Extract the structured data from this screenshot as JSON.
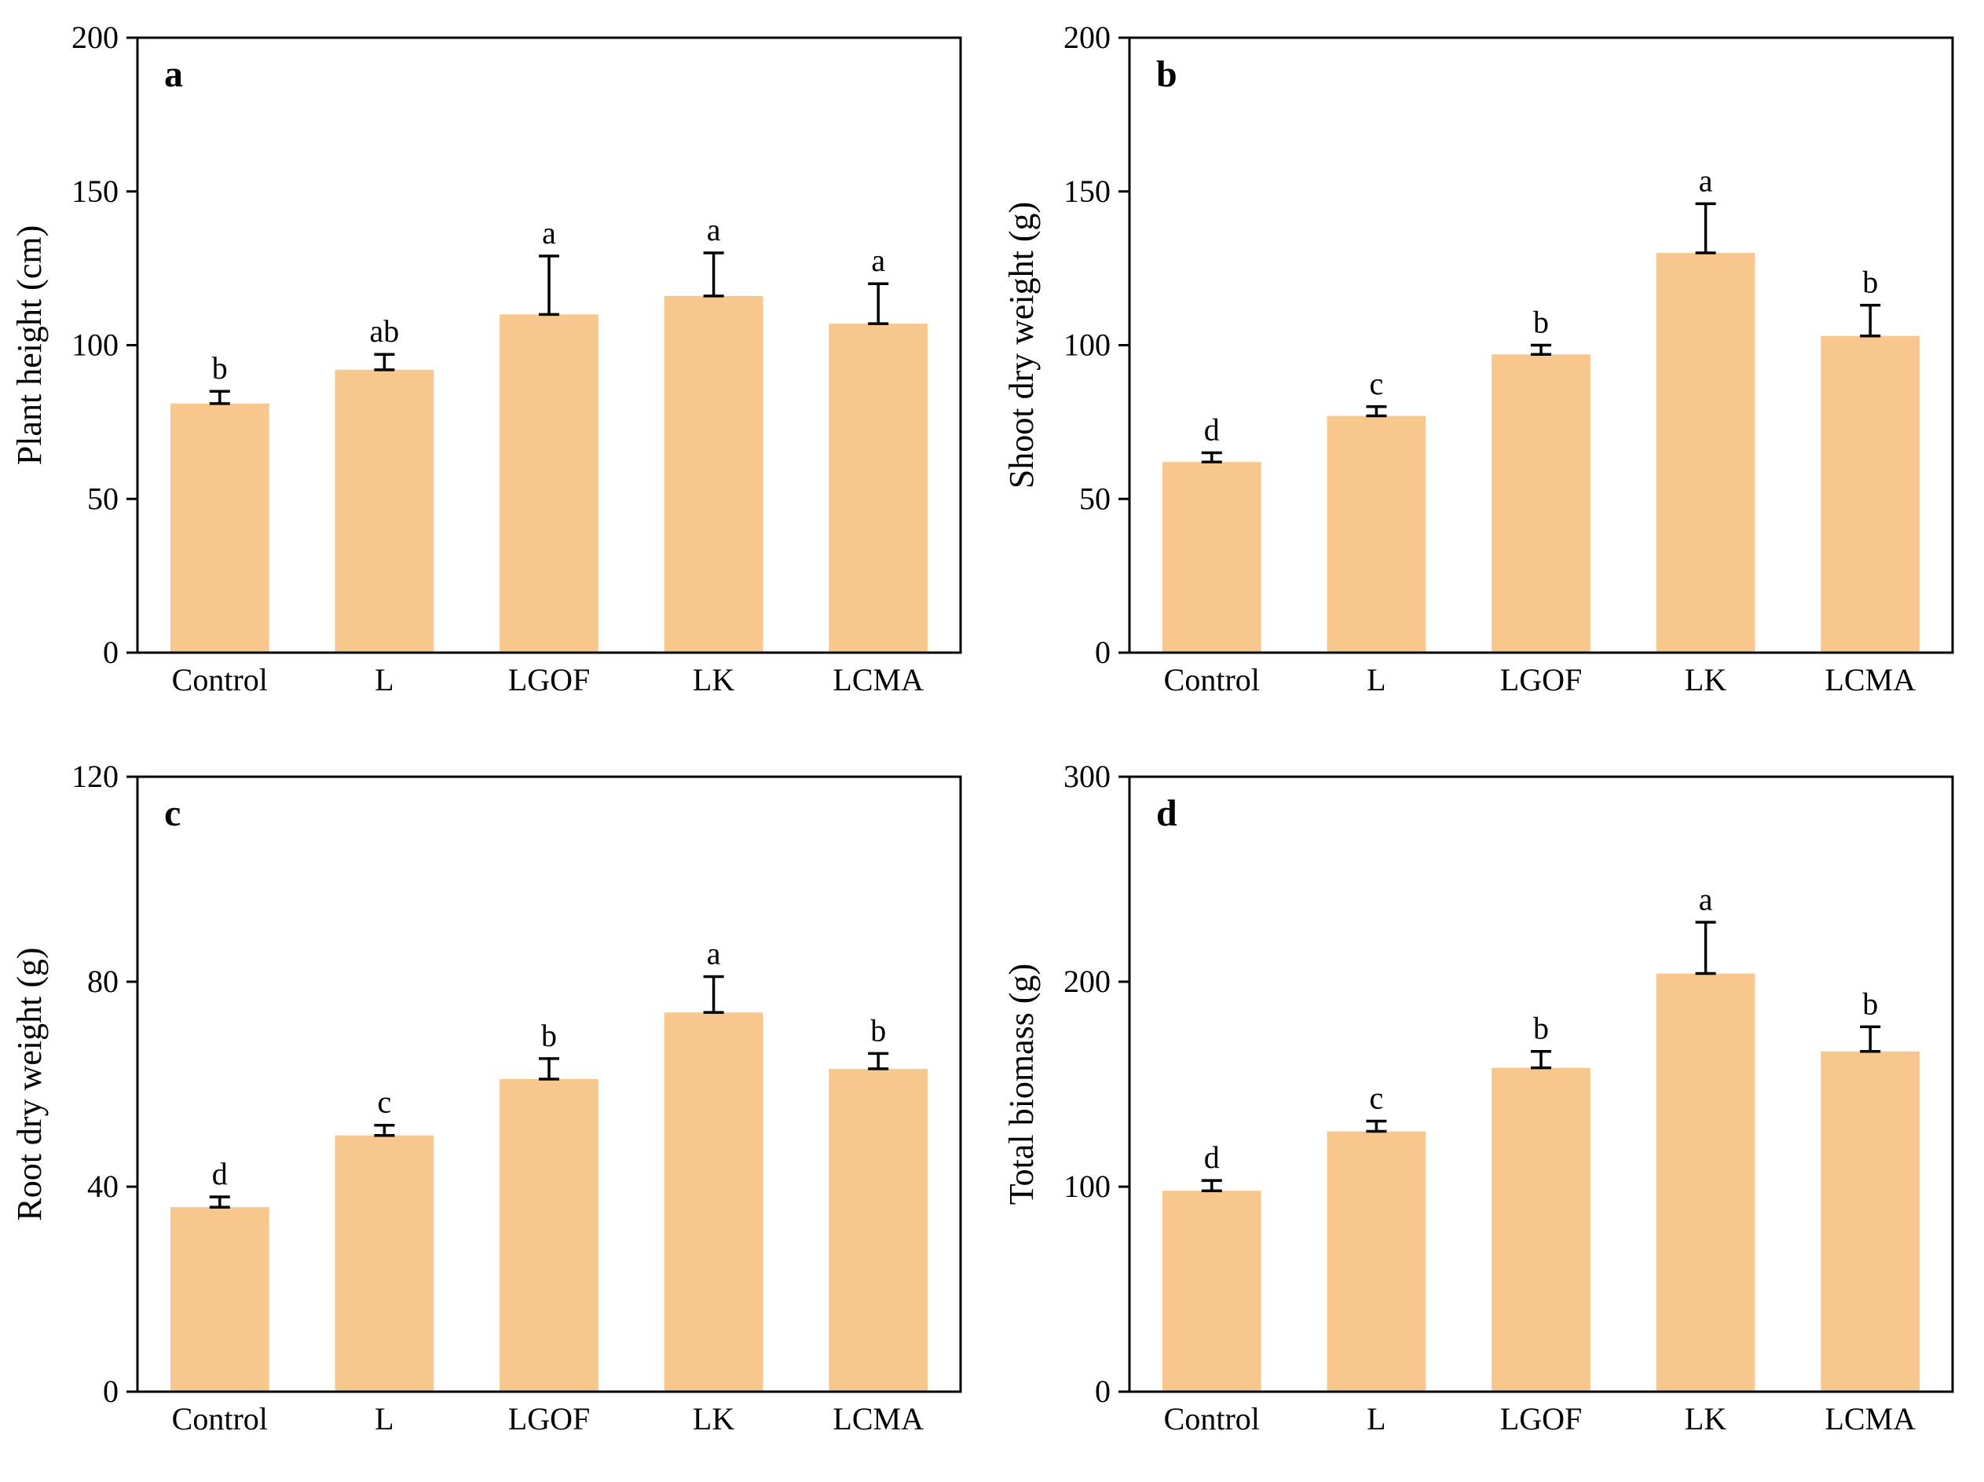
{
  "figure": {
    "background": "#ffffff",
    "bar_color": "#F7C78E",
    "axis_color": "#000000",
    "error_bar_color": "#000000"
  },
  "chart_data": [
    {
      "type": "bar",
      "panel_label": "a",
      "title": "",
      "xlabel": "",
      "ylabel": "Plant height (cm)",
      "categories": [
        "Control",
        "L",
        "LGOF",
        "LK",
        "LCMA"
      ],
      "values": [
        81,
        92,
        110,
        116,
        107
      ],
      "errors": [
        4,
        5,
        19,
        14,
        13
      ],
      "sig_letters": [
        "b",
        "ab",
        "a",
        "a",
        "a"
      ],
      "ylim": [
        0,
        200
      ],
      "yticks": [
        0,
        50,
        100,
        150,
        200
      ],
      "grid": false,
      "legend": "none"
    },
    {
      "type": "bar",
      "panel_label": "b",
      "title": "",
      "xlabel": "",
      "ylabel": "Shoot dry weight (g)",
      "categories": [
        "Control",
        "L",
        "LGOF",
        "LK",
        "LCMA"
      ],
      "values": [
        62,
        77,
        97,
        130,
        103
      ],
      "errors": [
        3,
        3,
        3,
        16,
        10
      ],
      "sig_letters": [
        "d",
        "c",
        "b",
        "a",
        "b"
      ],
      "ylim": [
        0,
        200
      ],
      "yticks": [
        0,
        50,
        100,
        150,
        200
      ],
      "grid": false,
      "legend": "none"
    },
    {
      "type": "bar",
      "panel_label": "c",
      "title": "",
      "xlabel": "",
      "ylabel": "Root dry weight (g)",
      "categories": [
        "Control",
        "L",
        "LGOF",
        "LK",
        "LCMA"
      ],
      "values": [
        36,
        50,
        61,
        74,
        63
      ],
      "errors": [
        2,
        2,
        4,
        7,
        3
      ],
      "sig_letters": [
        "d",
        "c",
        "b",
        "a",
        "b"
      ],
      "ylim": [
        0,
        120
      ],
      "yticks": [
        0,
        40,
        80,
        120
      ],
      "grid": false,
      "legend": "none"
    },
    {
      "type": "bar",
      "panel_label": "d",
      "title": "",
      "xlabel": "",
      "ylabel": "Total biomass (g)",
      "categories": [
        "Control",
        "L",
        "LGOF",
        "LK",
        "LCMA"
      ],
      "values": [
        98,
        127,
        158,
        204,
        166
      ],
      "errors": [
        5,
        5,
        8,
        25,
        12
      ],
      "sig_letters": [
        "d",
        "c",
        "b",
        "a",
        "b"
      ],
      "ylim": [
        0,
        300
      ],
      "yticks": [
        0,
        100,
        200,
        300
      ],
      "grid": false,
      "legend": "none"
    }
  ]
}
